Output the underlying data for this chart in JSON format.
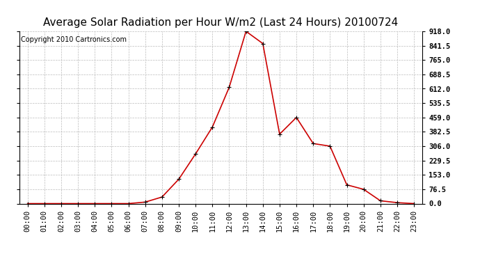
{
  "title": "Average Solar Radiation per Hour W/m2 (Last 24 Hours) 20100724",
  "copyright": "Copyright 2010 Cartronics.com",
  "x_labels": [
    "00:00",
    "01:00",
    "02:00",
    "03:00",
    "04:00",
    "05:00",
    "06:00",
    "07:00",
    "08:00",
    "09:00",
    "10:00",
    "11:00",
    "12:00",
    "13:00",
    "14:00",
    "15:00",
    "16:00",
    "17:00",
    "18:00",
    "19:00",
    "20:00",
    "21:00",
    "22:00",
    "23:00"
  ],
  "y_values": [
    0,
    0,
    0,
    0,
    0,
    0,
    0,
    8,
    35,
    130,
    265,
    408,
    620,
    918,
    853,
    370,
    459,
    320,
    306,
    100,
    76,
    15,
    5,
    0
  ],
  "y_min": 0.0,
  "y_max": 918.0,
  "y_ticks": [
    0.0,
    76.5,
    153.0,
    229.5,
    306.0,
    382.5,
    459.0,
    535.5,
    612.0,
    688.5,
    765.0,
    841.5,
    918.0
  ],
  "line_color": "#cc0000",
  "marker_color": "#000000",
  "grid_color": "#bbbbbb",
  "bg_color": "#ffffff",
  "title_fontsize": 11,
  "copyright_fontsize": 7,
  "tick_fontsize": 7.5
}
